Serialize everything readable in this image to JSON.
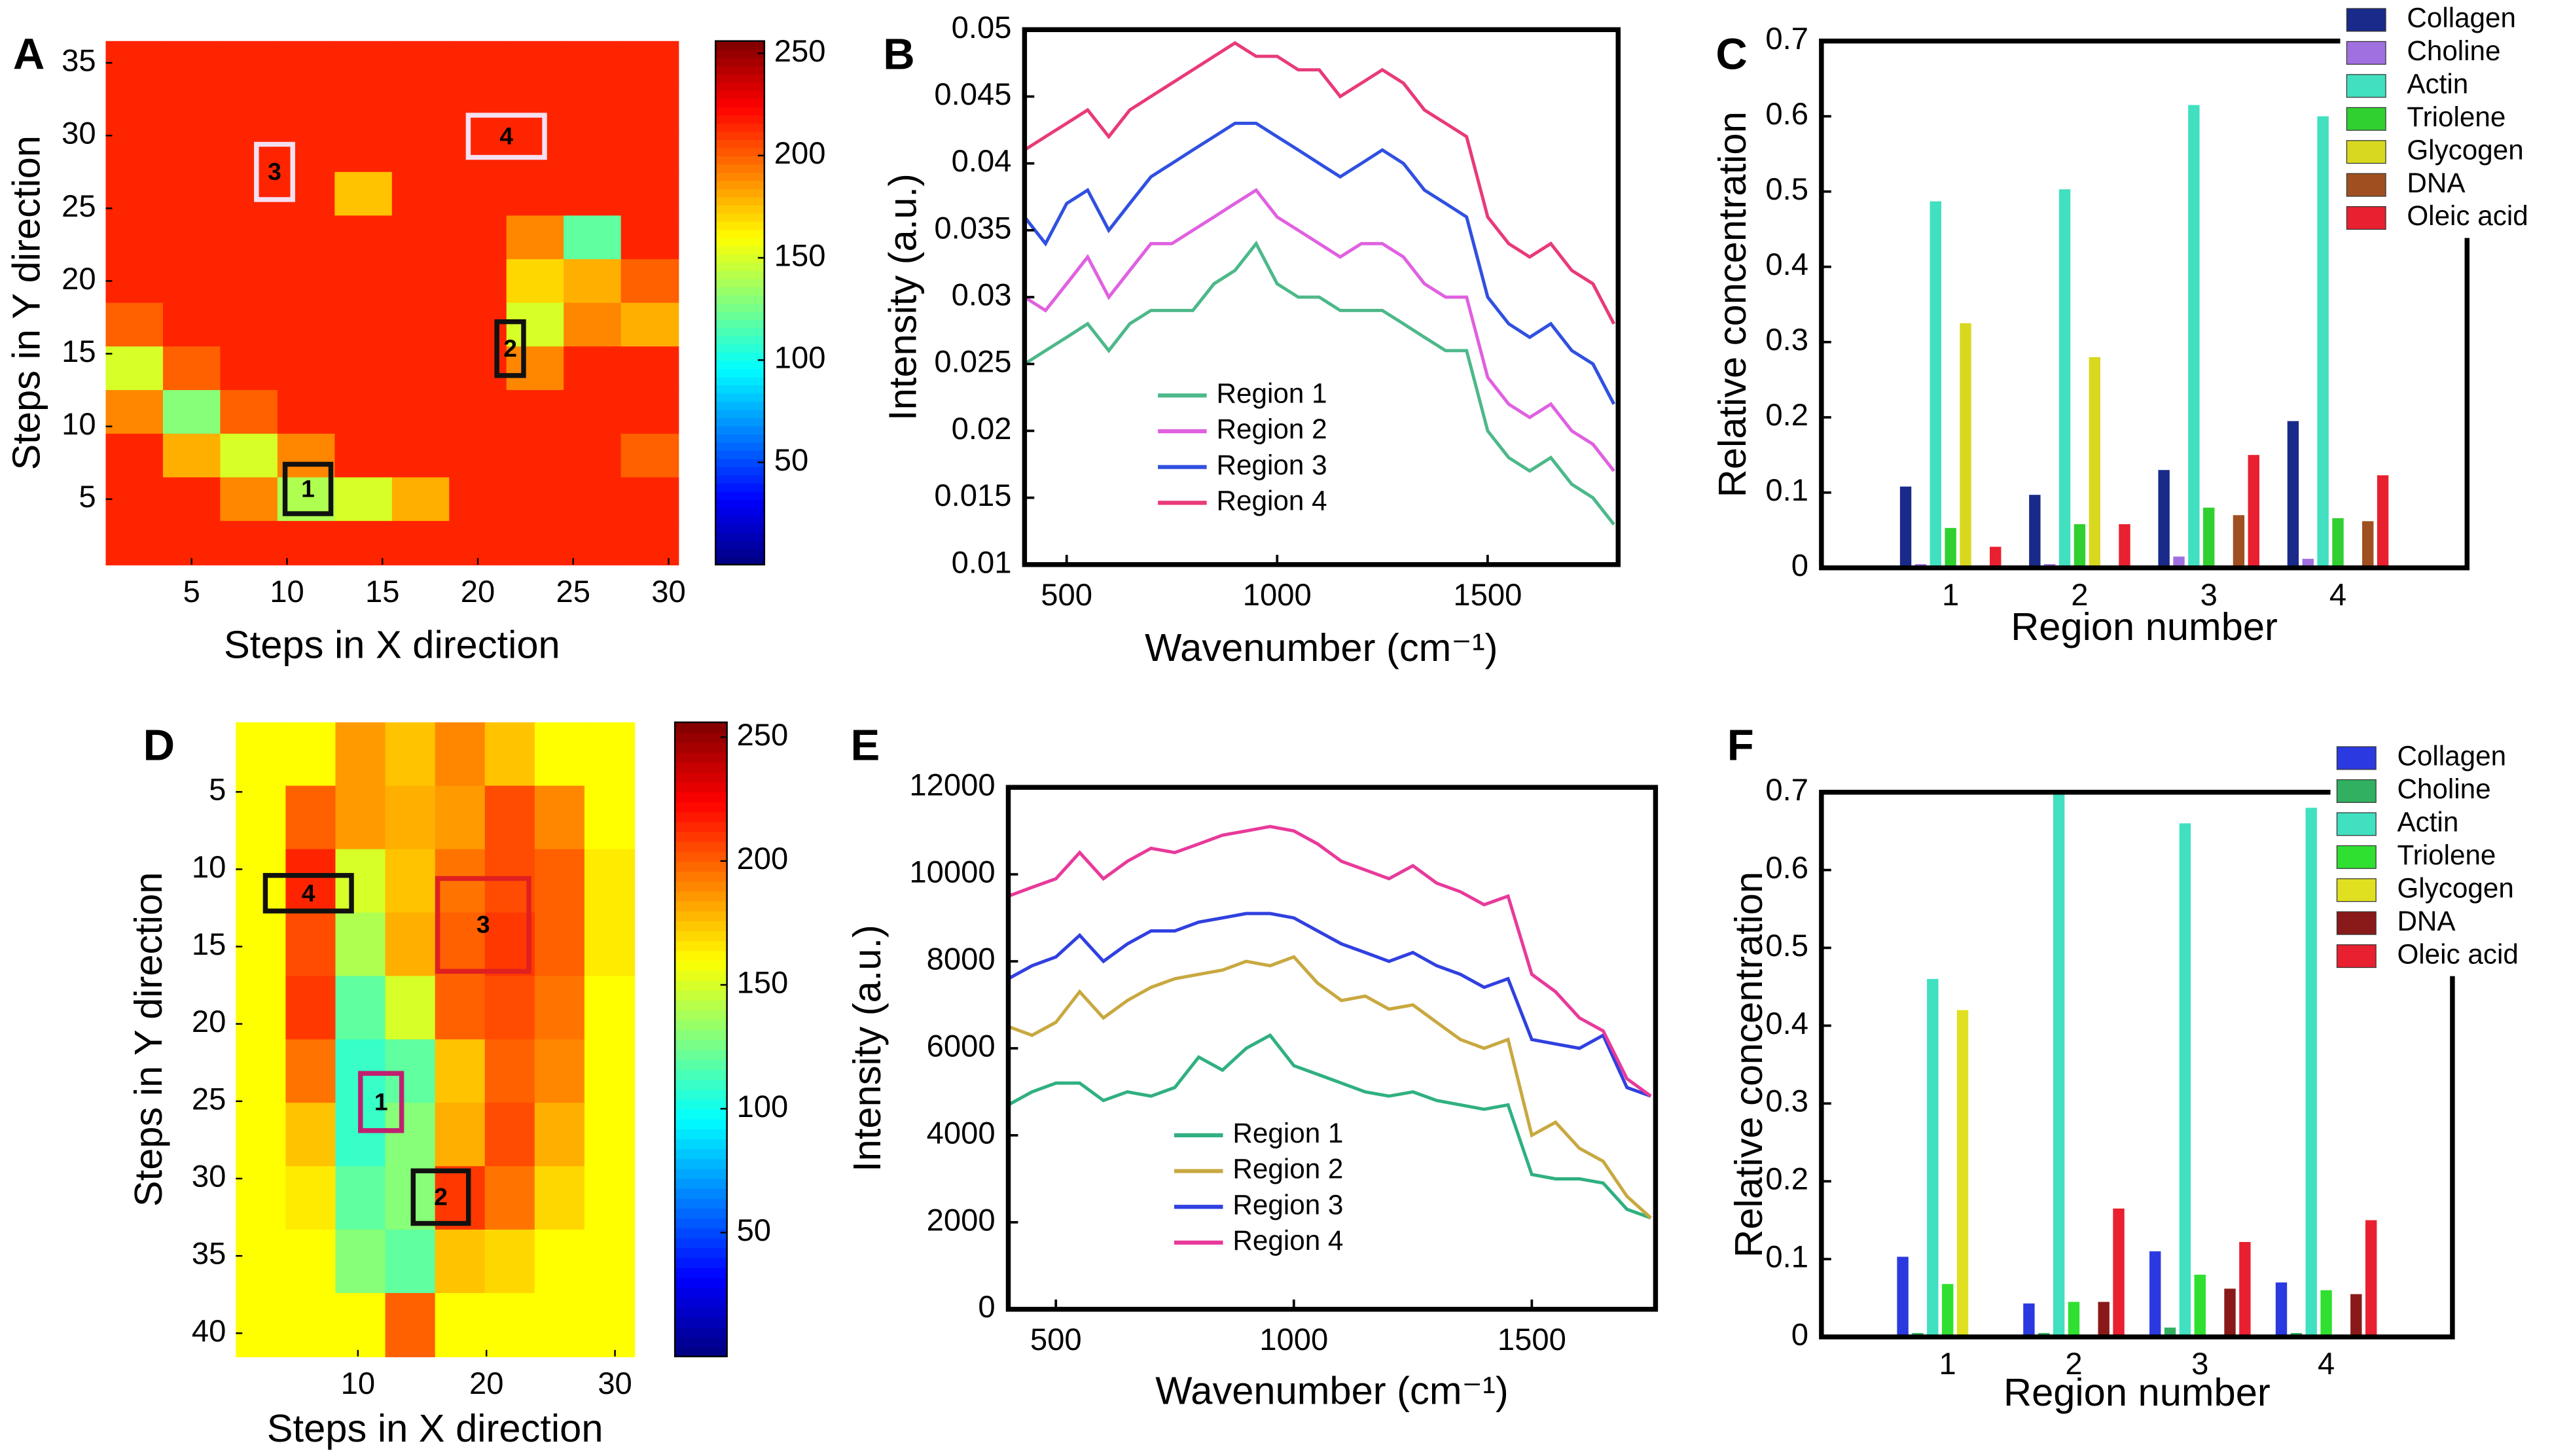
{
  "chart_data": [
    {
      "type": "heatmap",
      "panel": "A",
      "x_label": "Steps in X direction",
      "y_label": "Steps in Y direction",
      "xlim": [
        0.5,
        30.5
      ],
      "ylim": [
        0.5,
        36.5
      ],
      "xticks": [
        5,
        10,
        15,
        20,
        25,
        30
      ],
      "yticks": [
        5,
        10,
        15,
        20,
        25,
        30,
        35
      ],
      "clim": [
        0,
        256
      ],
      "cticks": [
        50,
        100,
        150,
        200,
        250
      ],
      "z": [
        [
          215,
          215,
          215,
          215,
          215,
          215,
          215,
          215,
          215,
          215
        ],
        [
          215,
          215,
          215,
          215,
          215,
          215,
          215,
          215,
          215,
          215
        ],
        [
          215,
          215,
          215,
          215,
          215,
          215,
          215,
          215,
          215,
          215
        ],
        [
          215,
          215,
          215,
          215,
          175,
          215,
          215,
          215,
          215,
          215
        ],
        [
          215,
          215,
          215,
          215,
          215,
          215,
          215,
          190,
          120,
          215
        ],
        [
          215,
          215,
          215,
          215,
          215,
          215,
          215,
          170,
          180,
          200
        ],
        [
          200,
          215,
          215,
          215,
          215,
          215,
          215,
          150,
          190,
          180
        ],
        [
          150,
          200,
          215,
          215,
          215,
          215,
          215,
          190,
          215,
          215
        ],
        [
          190,
          130,
          200,
          215,
          215,
          215,
          215,
          215,
          215,
          215
        ],
        [
          215,
          180,
          150,
          190,
          215,
          215,
          215,
          215,
          215,
          200
        ],
        [
          215,
          215,
          190,
          140,
          150,
          180,
          215,
          215,
          215,
          215
        ],
        [
          215,
          215,
          215,
          215,
          215,
          215,
          215,
          215,
          215,
          215
        ]
      ],
      "regions": [
        {
          "label": "1",
          "x": [
            9.9,
            12.3
          ],
          "y": [
            4,
            7.4
          ],
          "color": "#111111"
        },
        {
          "label": "2",
          "x": [
            21,
            22.4
          ],
          "y": [
            13.5,
            17.2
          ],
          "color": "#111111"
        },
        {
          "label": "3",
          "x": [
            8.4,
            10.3
          ],
          "y": [
            25.6,
            29.4
          ],
          "color": "#f4e0f0"
        },
        {
          "label": "4",
          "x": [
            19.5,
            23.5
          ],
          "y": [
            28.5,
            31.4
          ],
          "color": "#f4e0f0"
        }
      ]
    },
    {
      "type": "line",
      "panel": "B",
      "x_label": "Wavenumber (cm⁻¹)",
      "y_label": "Intensity (a.u.)",
      "xlim": [
        400,
        1810
      ],
      "ylim": [
        0.01,
        0.05
      ],
      "xticks": [
        500,
        1000,
        1500
      ],
      "yticks": [
        0.01,
        0.015,
        0.02,
        0.025,
        0.03,
        0.035,
        0.04,
        0.045,
        0.05
      ],
      "x": [
        400,
        450,
        500,
        550,
        600,
        650,
        700,
        750,
        800,
        850,
        900,
        950,
        1000,
        1050,
        1100,
        1150,
        1200,
        1250,
        1300,
        1350,
        1400,
        1450,
        1500,
        1550,
        1600,
        1650,
        1700,
        1750,
        1800
      ],
      "series": [
        {
          "name": "Region 1",
          "color": "#4db88a",
          "values": [
            0.025,
            0.026,
            0.027,
            0.028,
            0.026,
            0.028,
            0.029,
            0.029,
            0.029,
            0.031,
            0.032,
            0.034,
            0.031,
            0.03,
            0.03,
            0.029,
            0.029,
            0.029,
            0.028,
            0.027,
            0.026,
            0.026,
            0.02,
            0.018,
            0.017,
            0.018,
            0.016,
            0.015,
            0.013
          ]
        },
        {
          "name": "Region 2",
          "color": "#e060e0",
          "values": [
            0.03,
            0.029,
            0.031,
            0.033,
            0.03,
            0.032,
            0.034,
            0.034,
            0.035,
            0.036,
            0.037,
            0.038,
            0.036,
            0.035,
            0.034,
            0.033,
            0.034,
            0.034,
            0.033,
            0.031,
            0.03,
            0.03,
            0.024,
            0.022,
            0.021,
            0.022,
            0.02,
            0.019,
            0.017
          ]
        },
        {
          "name": "Region 3",
          "color": "#3050e0",
          "values": [
            0.036,
            0.034,
            0.037,
            0.038,
            0.035,
            0.037,
            0.039,
            0.04,
            0.041,
            0.042,
            0.043,
            0.043,
            0.042,
            0.041,
            0.04,
            0.039,
            0.04,
            0.041,
            0.04,
            0.038,
            0.037,
            0.036,
            0.03,
            0.028,
            0.027,
            0.028,
            0.026,
            0.025,
            0.022
          ]
        },
        {
          "name": "Region 4",
          "color": "#e83a7a",
          "values": [
            0.041,
            0.042,
            0.043,
            0.044,
            0.042,
            0.044,
            0.045,
            0.046,
            0.047,
            0.048,
            0.049,
            0.048,
            0.048,
            0.047,
            0.047,
            0.045,
            0.046,
            0.047,
            0.046,
            0.044,
            0.043,
            0.042,
            0.036,
            0.034,
            0.033,
            0.034,
            0.032,
            0.031,
            0.028
          ]
        }
      ]
    },
    {
      "type": "bar",
      "panel": "C",
      "x_label": "Region number",
      "y_label": "Relative concentration",
      "categories": [
        "1",
        "2",
        "3",
        "4"
      ],
      "ylim": [
        0,
        0.7
      ],
      "yticks": [
        0,
        0.1,
        0.2,
        0.3,
        0.4,
        0.5,
        0.6,
        0.7
      ],
      "series": [
        {
          "name": "Collagen",
          "color": "#1a2a8a",
          "values": [
            0.108,
            0.097,
            0.13,
            0.195
          ]
        },
        {
          "name": "Choline",
          "color": "#a070e0",
          "values": [
            0.005,
            0.005,
            0.015,
            0.012
          ]
        },
        {
          "name": "Actin",
          "color": "#40e0c0",
          "values": [
            0.487,
            0.503,
            0.615,
            0.6
          ]
        },
        {
          "name": "Triolene",
          "color": "#30d030",
          "values": [
            0.053,
            0.058,
            0.08,
            0.066
          ]
        },
        {
          "name": "Glycogen",
          "color": "#d8d820",
          "values": [
            0.325,
            0.28,
            0,
            0
          ]
        },
        {
          "name": "DNA",
          "color": "#a05020",
          "values": [
            0,
            0,
            0.07,
            0.062
          ]
        },
        {
          "name": "Oleic acid",
          "color": "#e82030",
          "values": [
            0.028,
            0.058,
            0.15,
            0.123
          ]
        }
      ]
    },
    {
      "type": "heatmap",
      "panel": "D",
      "x_label": "Steps in X direction",
      "y_label": "Steps in Y direction",
      "xlim": [
        0.5,
        31.5
      ],
      "ylim": [
        41.5,
        0.5
      ],
      "xticks": [
        10,
        20,
        30
      ],
      "yticks": [
        5,
        10,
        15,
        20,
        25,
        30,
        35,
        40
      ],
      "clim": [
        0,
        256
      ],
      "cticks": [
        50,
        100,
        150,
        200,
        250
      ],
      "z": [
        [
          160,
          160,
          185,
          175,
          190,
          175,
          160,
          160
        ],
        [
          160,
          200,
          185,
          180,
          185,
          205,
          190,
          160
        ],
        [
          160,
          215,
          150,
          175,
          195,
          205,
          200,
          165
        ],
        [
          160,
          205,
          140,
          180,
          200,
          210,
          200,
          165
        ],
        [
          160,
          210,
          120,
          150,
          200,
          205,
          195,
          160
        ],
        [
          160,
          195,
          110,
          120,
          175,
          200,
          190,
          160
        ],
        [
          160,
          175,
          110,
          130,
          180,
          205,
          180,
          160
        ],
        [
          160,
          165,
          120,
          130,
          210,
          195,
          170,
          160
        ],
        [
          160,
          160,
          130,
          120,
          175,
          170,
          160,
          160
        ],
        [
          160,
          160,
          160,
          200,
          160,
          160,
          160,
          160
        ]
      ],
      "regions": [
        {
          "label": "1",
          "x": [
            10.2,
            13.4
          ],
          "y": [
            23.2,
            26.9
          ],
          "color": "#c02070"
        },
        {
          "label": "2",
          "x": [
            14.3,
            18.6
          ],
          "y": [
            29.5,
            32.9
          ],
          "color": "#111111"
        },
        {
          "label": "3",
          "x": [
            16.2,
            23.3
          ],
          "y": [
            10.6,
            16.6
          ],
          "color": "#e02020"
        },
        {
          "label": "4",
          "x": [
            2.8,
            9.5
          ],
          "y": [
            10.4,
            12.7
          ],
          "color": "#111111"
        }
      ]
    },
    {
      "type": "line",
      "panel": "E",
      "x_label": "Wavenumber (cm⁻¹)",
      "y_label": "Intensity (a.u.)",
      "xlim": [
        400,
        1760
      ],
      "ylim": [
        0,
        12000
      ],
      "xticks": [
        500,
        1000,
        1500
      ],
      "yticks": [
        0,
        2000,
        4000,
        6000,
        8000,
        10000,
        12000
      ],
      "x": [
        400,
        450,
        500,
        550,
        600,
        650,
        700,
        750,
        800,
        850,
        900,
        950,
        1000,
        1050,
        1100,
        1150,
        1200,
        1250,
        1300,
        1350,
        1400,
        1450,
        1500,
        1550,
        1600,
        1650,
        1700,
        1750
      ],
      "series": [
        {
          "name": "Region 1",
          "color": "#30b080",
          "values": [
            4700,
            5000,
            5200,
            5200,
            4800,
            5000,
            4900,
            5100,
            5800,
            5500,
            6000,
            6300,
            5600,
            5400,
            5200,
            5000,
            4900,
            5000,
            4800,
            4700,
            4600,
            4700,
            3100,
            3000,
            3000,
            2900,
            2300,
            2100
          ]
        },
        {
          "name": "Region 2",
          "color": "#c8a840",
          "values": [
            6500,
            6300,
            6600,
            7300,
            6700,
            7100,
            7400,
            7600,
            7700,
            7800,
            8000,
            7900,
            8100,
            7500,
            7100,
            7200,
            6900,
            7000,
            6600,
            6200,
            6000,
            6200,
            4000,
            4300,
            3700,
            3400,
            2600,
            2100
          ]
        },
        {
          "name": "Region 3",
          "color": "#3040e0",
          "values": [
            7600,
            7900,
            8100,
            8600,
            8000,
            8400,
            8700,
            8700,
            8900,
            9000,
            9100,
            9100,
            9000,
            8700,
            8400,
            8200,
            8000,
            8200,
            7900,
            7700,
            7400,
            7600,
            6200,
            6100,
            6000,
            6300,
            5100,
            4900
          ]
        },
        {
          "name": "Region 4",
          "color": "#e83a9a",
          "values": [
            9500,
            9700,
            9900,
            10500,
            9900,
            10300,
            10600,
            10500,
            10700,
            10900,
            11000,
            11100,
            11000,
            10700,
            10300,
            10100,
            9900,
            10200,
            9800,
            9600,
            9300,
            9500,
            7700,
            7300,
            6700,
            6400,
            5300,
            4900
          ]
        }
      ]
    },
    {
      "type": "bar",
      "panel": "F",
      "x_label": "Region number",
      "y_label": "Relative concentration",
      "categories": [
        "1",
        "2",
        "3",
        "4"
      ],
      "ylim": [
        0,
        0.7
      ],
      "yticks": [
        0,
        0.1,
        0.2,
        0.3,
        0.4,
        0.5,
        0.6,
        0.7
      ],
      "series": [
        {
          "name": "Collagen",
          "color": "#2a3ae0",
          "values": [
            0.103,
            0.043,
            0.11,
            0.07
          ]
        },
        {
          "name": "Choline",
          "color": "#30b060",
          "values": [
            0.005,
            0.005,
            0.012,
            0.005
          ]
        },
        {
          "name": "Actin",
          "color": "#40e0c0",
          "values": [
            0.46,
            0.7,
            0.66,
            0.68
          ]
        },
        {
          "name": "Triolene",
          "color": "#30e030",
          "values": [
            0.068,
            0.045,
            0.08,
            0.06
          ]
        },
        {
          "name": "Glycogen",
          "color": "#e0e020",
          "values": [
            0.42,
            0,
            0,
            0
          ]
        },
        {
          "name": "DNA",
          "color": "#8a1a1a",
          "values": [
            0,
            0.045,
            0.062,
            0.055
          ]
        },
        {
          "name": "Oleic acid",
          "color": "#e82030",
          "values": [
            0,
            0.165,
            0.122,
            0.15
          ]
        }
      ]
    }
  ]
}
